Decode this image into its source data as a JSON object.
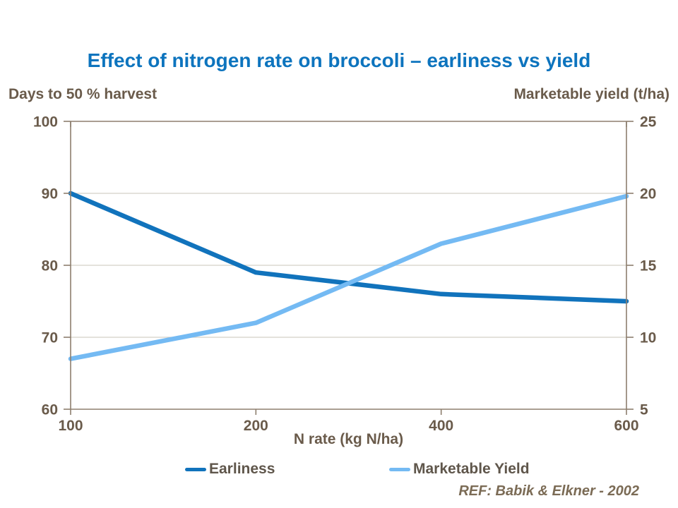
{
  "title": "Effect of nitrogen rate on broccoli – earliness vs yield",
  "left_axis_header": "Days to 50 % harvest",
  "right_axis_header": "Marketable yield (t/ha)",
  "x_axis_title": "N rate (kg N/ha)",
  "reference": "REF: Babik & Elkner - 2002",
  "chart_data": {
    "type": "line",
    "title": "Effect of nitrogen rate on broccoli – earliness vs yield",
    "categories": [
      100,
      200,
      400,
      600
    ],
    "xlabel": "N rate (kg N/ha)",
    "x_tick_labels": [
      "100",
      "200",
      "400",
      "600"
    ],
    "left_ylabel": "Days to 50 % harvest",
    "right_ylabel": "Marketable yield (t/ha)",
    "left_ylim": [
      60,
      100
    ],
    "right_ylim": [
      5,
      25
    ],
    "left_yticks": [
      100,
      90,
      80,
      70,
      60
    ],
    "right_yticks": [
      25,
      20,
      15,
      10,
      5
    ],
    "grid": true,
    "legend_position": "bottom",
    "series": [
      {
        "name": "Earliness",
        "axis": "left",
        "color": "#1173BC",
        "values": [
          90,
          79,
          76,
          75
        ]
      },
      {
        "name": "Marketable Yield",
        "axis": "right",
        "color": "#74BAF3",
        "values": [
          8.5,
          11,
          16.5,
          19.8
        ]
      }
    ]
  },
  "legend": {
    "items": [
      {
        "label": "Earliness",
        "color": "#1173BC"
      },
      {
        "label": "Marketable Yield",
        "color": "#74BAF3"
      }
    ]
  },
  "colors": {
    "title": "#0D74BE",
    "axis_text": "#6A5B4B",
    "axis_line": "#8D7F6E",
    "gridline": "#D4D0C6",
    "legend_text": "#5F564B",
    "reference_text": "#7B6B55"
  }
}
